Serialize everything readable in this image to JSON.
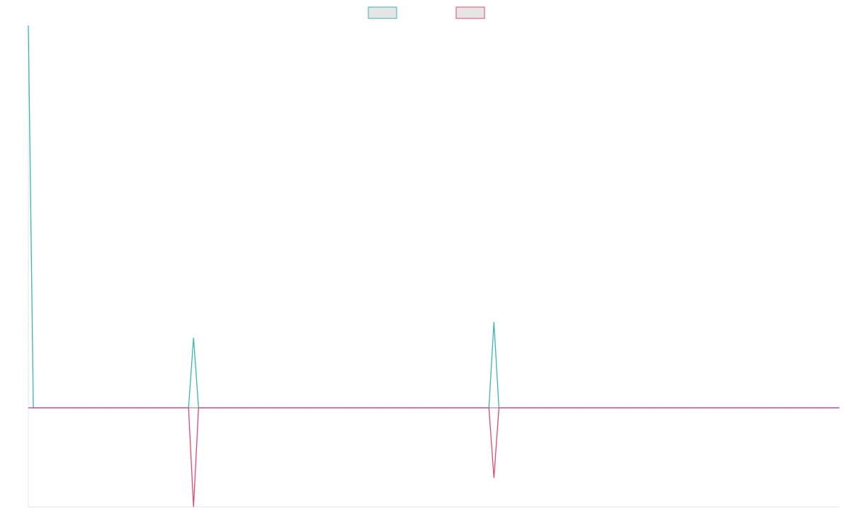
{
  "chart_data": {
    "type": "line",
    "title": "",
    "xlabel": "",
    "ylabel": "",
    "x_count": 163,
    "xlim": [
      0,
      162
    ],
    "ylim": [
      -140,
      540
    ],
    "grid": false,
    "legend": {
      "placement": "top-center",
      "swatch_fill": "#e5e5e5"
    },
    "zero_line_color": "#999999",
    "series": [
      {
        "color": "#36b7b0",
        "points": [
          [
            0,
            540
          ],
          [
            1,
            0
          ],
          [
            32,
            0
          ],
          [
            33,
            99
          ],
          [
            34,
            0
          ],
          [
            92,
            0
          ],
          [
            93,
            121
          ],
          [
            94,
            0
          ],
          [
            162,
            0
          ]
        ]
      },
      {
        "color": "#e8456f",
        "points": [
          [
            0,
            0
          ],
          [
            32,
            0
          ],
          [
            33,
            -140
          ],
          [
            34,
            0
          ],
          [
            92,
            0
          ],
          [
            93,
            -99
          ],
          [
            94,
            0
          ],
          [
            162,
            0
          ]
        ]
      }
    ]
  }
}
